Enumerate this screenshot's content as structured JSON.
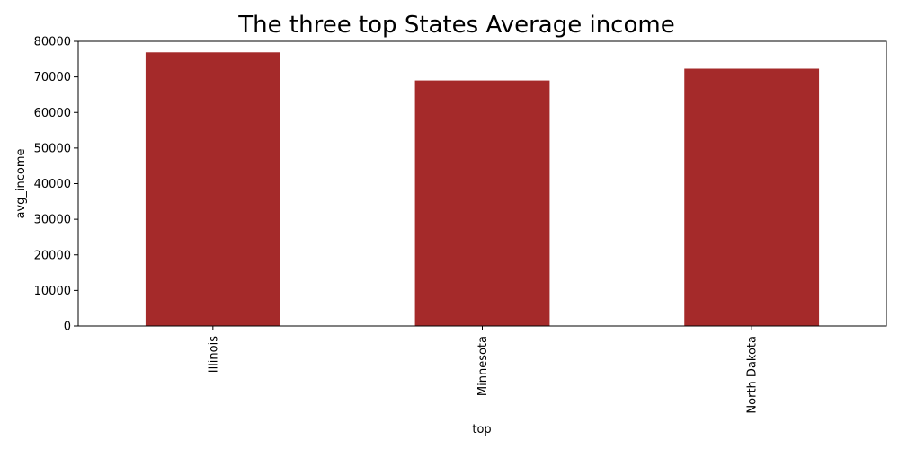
{
  "chart_data": {
    "type": "bar",
    "title": "The three top States Average income",
    "xlabel": "top",
    "ylabel": "avg_income",
    "categories": [
      "Illinois",
      "Minnesota",
      "North Dakota"
    ],
    "values": [
      76900,
      69000,
      72300
    ],
    "ylim": [
      0,
      80000
    ],
    "yticks": [
      0,
      10000,
      20000,
      30000,
      40000,
      50000,
      60000,
      70000,
      80000
    ],
    "bar_color": "#a52a2a",
    "grid": false,
    "legend": "none"
  }
}
